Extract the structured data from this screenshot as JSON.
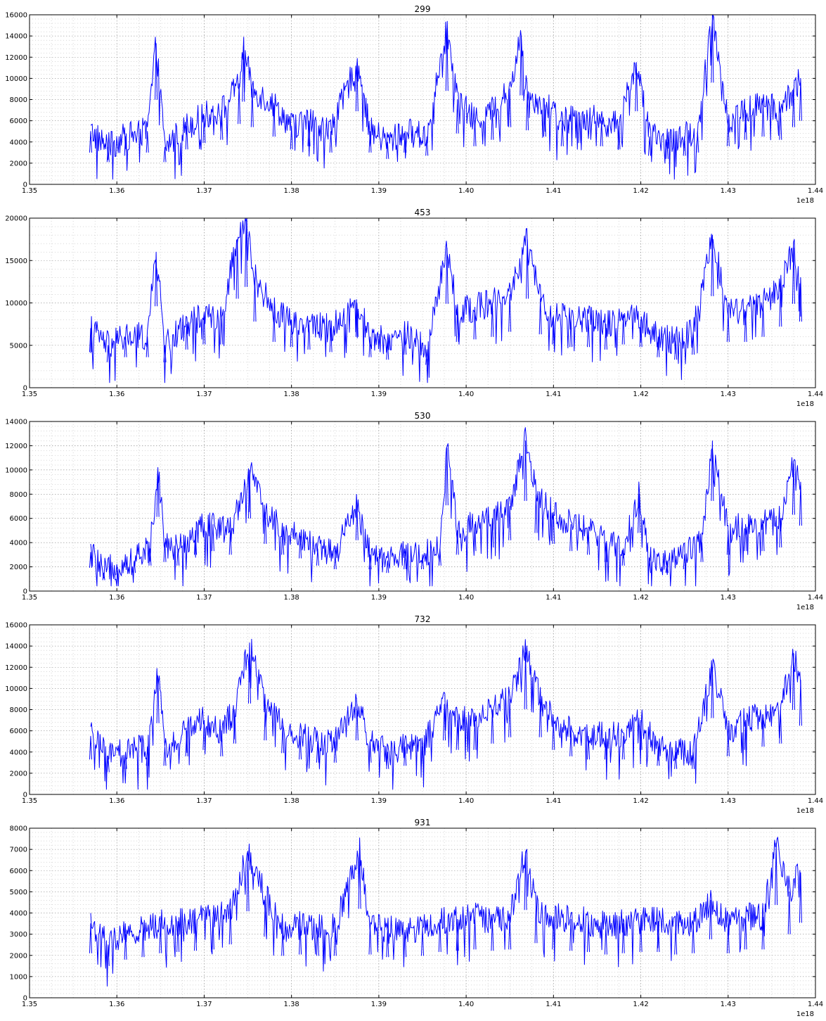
{
  "chart_data": [
    {
      "type": "line",
      "title": "299",
      "xlim": [
        1.35,
        1.44
      ],
      "x_offset_label": "1e18",
      "xticks": [
        1.35,
        1.36,
        1.37,
        1.38,
        1.39,
        1.4,
        1.41,
        1.42,
        1.43,
        1.44
      ],
      "xtick_labels": [
        "1.35",
        "1.36",
        "1.37",
        "1.38",
        "1.39",
        "1.40",
        "1.41",
        "1.42",
        "1.43",
        "1.44"
      ],
      "ylim": [
        0,
        16000
      ],
      "yticks": [
        0,
        2000,
        4000,
        6000,
        8000,
        10000,
        12000,
        14000,
        16000
      ],
      "grid": true,
      "color": "#0000ff",
      "series": [
        {
          "x": [
            1.357,
            1.359,
            1.361,
            1.3635,
            1.3645,
            1.3655,
            1.368,
            1.37,
            1.372,
            1.374,
            1.3745,
            1.3755,
            1.378,
            1.38,
            1.382,
            1.3845,
            1.3875,
            1.389,
            1.391,
            1.393,
            1.3955,
            1.3978,
            1.399,
            1.401,
            1.403,
            1.405,
            1.4063,
            1.407,
            1.409,
            1.411,
            1.413,
            1.4155,
            1.4175,
            1.4195,
            1.421,
            1.423,
            1.425,
            1.4265,
            1.4282,
            1.43,
            1.432,
            1.434,
            1.436,
            1.4375,
            1.4383
          ],
          "values": [
            5000,
            3500,
            4500,
            5000,
            13300,
            3500,
            5500,
            6500,
            7000,
            9500,
            13000,
            9000,
            7500,
            5500,
            6000,
            5000,
            11500,
            5000,
            4000,
            5000,
            4500,
            14700,
            8000,
            6000,
            7000,
            9000,
            14000,
            8500,
            7500,
            6000,
            6500,
            6000,
            5500,
            11500,
            4500,
            4000,
            4500,
            5000,
            16000,
            6000,
            7000,
            7500,
            7000,
            9000,
            10000
          ]
        }
      ]
    },
    {
      "type": "line",
      "title": "453",
      "xlim": [
        1.35,
        1.44
      ],
      "x_offset_label": "1e18",
      "xticks": [
        1.35,
        1.36,
        1.37,
        1.38,
        1.39,
        1.4,
        1.41,
        1.42,
        1.43,
        1.44
      ],
      "xtick_labels": [
        "1.35",
        "1.36",
        "1.37",
        "1.38",
        "1.39",
        "1.40",
        "1.41",
        "1.42",
        "1.43",
        "1.44"
      ],
      "ylim": [
        0,
        20000
      ],
      "yticks": [
        0,
        5000,
        10000,
        15000,
        20000
      ],
      "grid": true,
      "color": "#0000ff",
      "series": [
        {
          "x": [
            1.357,
            1.359,
            1.361,
            1.3635,
            1.3645,
            1.3655,
            1.368,
            1.37,
            1.372,
            1.3738,
            1.3748,
            1.3758,
            1.378,
            1.38,
            1.382,
            1.3845,
            1.3875,
            1.389,
            1.391,
            1.393,
            1.3955,
            1.3978,
            1.399,
            1.401,
            1.403,
            1.405,
            1.407,
            1.4085,
            1.41,
            1.412,
            1.414,
            1.416,
            1.418,
            1.42,
            1.422,
            1.424,
            1.426,
            1.4282,
            1.43,
            1.432,
            1.434,
            1.436,
            1.4375,
            1.4383
          ],
          "values": [
            7000,
            5000,
            6000,
            6000,
            16000,
            5000,
            7500,
            8500,
            8500,
            17500,
            19800,
            13000,
            9000,
            8000,
            7500,
            7000,
            10000,
            6000,
            5500,
            6500,
            4500,
            16500,
            9000,
            9500,
            10000,
            11000,
            17500,
            10500,
            8500,
            8000,
            8000,
            7500,
            8500,
            8000,
            6000,
            5500,
            6500,
            18000,
            9000,
            9000,
            10000,
            12000,
            16500,
            13000
          ]
        }
      ]
    },
    {
      "type": "line",
      "title": "530",
      "xlim": [
        1.35,
        1.44
      ],
      "x_offset_label": "1e18",
      "xticks": [
        1.35,
        1.36,
        1.37,
        1.38,
        1.39,
        1.4,
        1.41,
        1.42,
        1.43,
        1.44
      ],
      "xtick_labels": [
        "1.35",
        "1.36",
        "1.37",
        "1.38",
        "1.39",
        "1.40",
        "1.41",
        "1.42",
        "1.43",
        "1.44"
      ],
      "ylim": [
        0,
        14000
      ],
      "yticks": [
        0,
        2000,
        4000,
        6000,
        8000,
        10000,
        12000,
        14000
      ],
      "grid": true,
      "color": "#0000ff",
      "series": [
        {
          "x": [
            1.357,
            1.3585,
            1.36,
            1.362,
            1.3638,
            1.3647,
            1.3655,
            1.367,
            1.369,
            1.371,
            1.373,
            1.3752,
            1.377,
            1.379,
            1.381,
            1.383,
            1.385,
            1.3875,
            1.389,
            1.391,
            1.393,
            1.395,
            1.397,
            1.3978,
            1.399,
            1.401,
            1.403,
            1.405,
            1.4068,
            1.408,
            1.41,
            1.412,
            1.414,
            1.416,
            1.418,
            1.4198,
            1.421,
            1.423,
            1.425,
            1.427,
            1.4282,
            1.43,
            1.432,
            1.434,
            1.436,
            1.4375,
            1.4383
          ],
          "values": [
            3200,
            1500,
            2200,
            2500,
            3500,
            10200,
            4000,
            3500,
            5000,
            5500,
            5000,
            10000,
            6500,
            5000,
            4500,
            3500,
            3000,
            7000,
            3000,
            2500,
            3000,
            3000,
            3500,
            11800,
            5000,
            5500,
            6000,
            7000,
            12400,
            8000,
            6500,
            5500,
            5000,
            4000,
            3500,
            8000,
            2500,
            2500,
            3000,
            4000,
            12400,
            5000,
            5500,
            5500,
            6000,
            10500,
            9000
          ]
        }
      ]
    },
    {
      "type": "line",
      "title": "732",
      "xlim": [
        1.35,
        1.44
      ],
      "x_offset_label": "1e18",
      "xticks": [
        1.35,
        1.36,
        1.37,
        1.38,
        1.39,
        1.4,
        1.41,
        1.42,
        1.43,
        1.44
      ],
      "xtick_labels": [
        "1.35",
        "1.36",
        "1.37",
        "1.38",
        "1.39",
        "1.40",
        "1.41",
        "1.42",
        "1.43",
        "1.44"
      ],
      "ylim": [
        0,
        16000
      ],
      "yticks": [
        0,
        2000,
        4000,
        6000,
        8000,
        10000,
        12000,
        14000,
        16000
      ],
      "grid": true,
      "color": "#0000ff",
      "series": [
        {
          "x": [
            1.357,
            1.359,
            1.361,
            1.3635,
            1.3647,
            1.3655,
            1.368,
            1.37,
            1.372,
            1.3735,
            1.3752,
            1.377,
            1.379,
            1.381,
            1.383,
            1.385,
            1.3875,
            1.389,
            1.391,
            1.393,
            1.395,
            1.3975,
            1.399,
            1.401,
            1.403,
            1.405,
            1.4068,
            1.4085,
            1.41,
            1.412,
            1.414,
            1.416,
            1.418,
            1.42,
            1.422,
            1.424,
            1.426,
            1.4282,
            1.43,
            1.432,
            1.434,
            1.436,
            1.4375,
            1.4383
          ],
          "values": [
            5500,
            3500,
            4000,
            4500,
            11200,
            4500,
            6000,
            7000,
            6000,
            8000,
            14300,
            8500,
            6500,
            5500,
            5000,
            5000,
            8500,
            5000,
            4000,
            4500,
            4500,
            8500,
            7000,
            7000,
            8000,
            9000,
            13400,
            9000,
            7000,
            6000,
            5500,
            5500,
            5500,
            7000,
            4500,
            4000,
            4000,
            12000,
            6000,
            7000,
            7500,
            8000,
            13300,
            10800
          ]
        }
      ]
    },
    {
      "type": "line",
      "title": "931",
      "xlim": [
        1.35,
        1.44
      ],
      "x_offset_label": "1e18",
      "xticks": [
        1.35,
        1.36,
        1.37,
        1.38,
        1.39,
        1.4,
        1.41,
        1.42,
        1.43,
        1.44
      ],
      "xtick_labels": [
        "1.35",
        "1.36",
        "1.37",
        "1.38",
        "1.39",
        "1.40",
        "1.41",
        "1.42",
        "1.43",
        "1.44"
      ],
      "ylim": [
        0,
        8000
      ],
      "yticks": [
        0,
        1000,
        2000,
        3000,
        4000,
        5000,
        6000,
        7000,
        8000
      ],
      "grid": true,
      "color": "#0000ff",
      "series": [
        {
          "x": [
            1.357,
            1.359,
            1.361,
            1.363,
            1.365,
            1.367,
            1.369,
            1.371,
            1.373,
            1.375,
            1.377,
            1.379,
            1.381,
            1.383,
            1.385,
            1.3878,
            1.389,
            1.391,
            1.393,
            1.395,
            1.397,
            1.399,
            1.401,
            1.403,
            1.405,
            1.4068,
            1.408,
            1.41,
            1.412,
            1.414,
            1.416,
            1.418,
            1.42,
            1.422,
            1.424,
            1.426,
            1.428,
            1.43,
            1.432,
            1.434,
            1.4355,
            1.437,
            1.4383
          ],
          "values": [
            3500,
            2500,
            3000,
            3200,
            3500,
            3600,
            3700,
            3800,
            4200,
            6800,
            4800,
            3300,
            3400,
            3300,
            3300,
            7000,
            3400,
            3200,
            3200,
            3300,
            3600,
            3700,
            3800,
            3700,
            3800,
            6900,
            4300,
            3800,
            3700,
            3600,
            3400,
            3500,
            3600,
            3600,
            3400,
            3500,
            4600,
            3500,
            3800,
            3800,
            7300,
            5000,
            5900
          ]
        }
      ]
    }
  ]
}
